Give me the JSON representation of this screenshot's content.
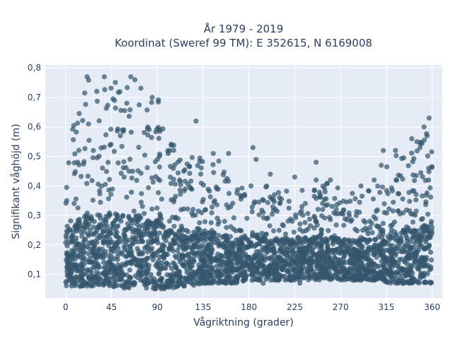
{
  "chart_data": {
    "type": "scatter",
    "title_line1": "År 1979 - 2019",
    "title_line2": "Koordinat (Sweref 99 TM): E 352615, N 6169008",
    "xlabel": "Vågriktning (grader)",
    "ylabel": "Signifikant våghöjd (m)",
    "xlim": [
      -20,
      370
    ],
    "ylim": [
      0.02,
      0.81
    ],
    "x_ticks": [
      0,
      45,
      90,
      135,
      180,
      225,
      270,
      315,
      360
    ],
    "x_tick_labels": [
      "0",
      "45",
      "90",
      "135",
      "180",
      "225",
      "270",
      "315",
      "360"
    ],
    "y_ticks": [
      0.1,
      0.2,
      0.3,
      0.4,
      0.5,
      0.6,
      0.7,
      0.8
    ],
    "y_tick_labels": [
      "0,1",
      "0,2",
      "0,3",
      "0,4",
      "0,5",
      "0,6",
      "0,7",
      "0,8"
    ],
    "grid": true,
    "marker_color": "#34566e",
    "plot_bg": "#e5ecf6",
    "series_envelope": {
      "x": [
        0,
        10,
        20,
        30,
        45,
        60,
        70,
        80,
        90,
        100,
        112,
        122,
        135,
        150,
        165,
        180,
        200,
        225,
        250,
        270,
        290,
        305,
        320,
        335,
        345,
        355,
        360
      ],
      "y_low": [
        0.06,
        0.06,
        0.06,
        0.06,
        0.06,
        0.05,
        0.05,
        0.05,
        0.05,
        0.05,
        0.06,
        0.06,
        0.07,
        0.07,
        0.07,
        0.08,
        0.08,
        0.08,
        0.08,
        0.08,
        0.08,
        0.08,
        0.07,
        0.07,
        0.07,
        0.07,
        0.07
      ],
      "y_high": [
        0.6,
        0.64,
        0.77,
        0.73,
        0.77,
        0.74,
        0.77,
        0.71,
        0.71,
        0.55,
        0.55,
        0.54,
        0.48,
        0.51,
        0.4,
        0.42,
        0.4,
        0.38,
        0.42,
        0.39,
        0.37,
        0.4,
        0.52,
        0.52,
        0.55,
        0.6,
        0.63
      ]
    },
    "outliers": [
      {
        "x": 21,
        "y": 0.77
      },
      {
        "x": 38,
        "y": 0.77
      },
      {
        "x": 64,
        "y": 0.77
      },
      {
        "x": 68,
        "y": 0.76
      },
      {
        "x": 48,
        "y": 0.69
      },
      {
        "x": 85,
        "y": 0.7
      },
      {
        "x": 92,
        "y": 0.59
      },
      {
        "x": 128,
        "y": 0.62
      },
      {
        "x": 145,
        "y": 0.51
      },
      {
        "x": 160,
        "y": 0.51
      },
      {
        "x": 184,
        "y": 0.53
      },
      {
        "x": 187,
        "y": 0.49
      },
      {
        "x": 201,
        "y": 0.44
      },
      {
        "x": 182,
        "y": 0.4
      },
      {
        "x": 225,
        "y": 0.43
      },
      {
        "x": 246,
        "y": 0.42
      },
      {
        "x": 260,
        "y": 0.42
      },
      {
        "x": 246,
        "y": 0.48
      },
      {
        "x": 290,
        "y": 0.4
      },
      {
        "x": 303,
        "y": 0.42
      },
      {
        "x": 312,
        "y": 0.52
      },
      {
        "x": 324,
        "y": 0.52
      },
      {
        "x": 340,
        "y": 0.56
      },
      {
        "x": 352,
        "y": 0.6
      },
      {
        "x": 357,
        "y": 0.63
      },
      {
        "x": 355,
        "y": 0.57
      },
      {
        "x": 345,
        "y": 0.55
      },
      {
        "x": 348,
        "y": 0.53
      },
      {
        "x": 194,
        "y": 0.31
      },
      {
        "x": 194,
        "y": 0.07
      },
      {
        "x": 221,
        "y": 0.08
      },
      {
        "x": 230,
        "y": 0.07
      },
      {
        "x": 205,
        "y": 0.37
      },
      {
        "x": 166,
        "y": 0.12
      },
      {
        "x": 310,
        "y": 0.47
      }
    ]
  }
}
